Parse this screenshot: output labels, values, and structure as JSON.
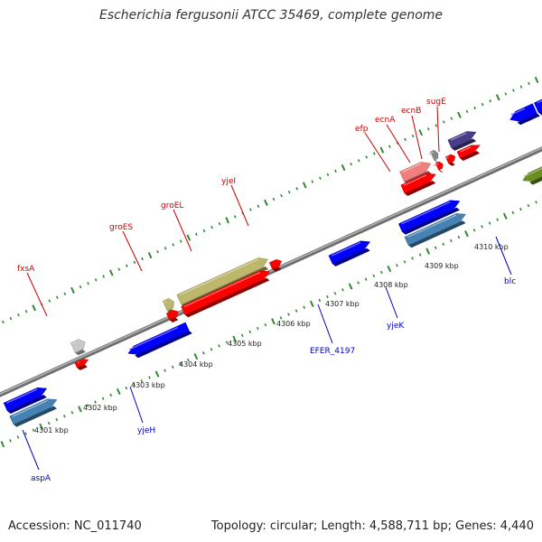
{
  "title": "Escherichia fergusonii ATCC 35469, complete genome",
  "footer": {
    "accession": "Accession: NC_011740",
    "summary": "Topology: circular; Length: 4,588,711 bp; Genes: 4,440"
  },
  "colors": {
    "backbone": "#8a8a8a",
    "tick": "#2f8a2f",
    "label_top": "#cc0000",
    "label_bottom": "#0000bb"
  },
  "scale_labels": [
    "4301 kbp",
    "4302 kbp",
    "4303 kbp",
    "4304 kbp",
    "4305 kbp",
    "4306 kbp",
    "4307 kbp",
    "4308 kbp",
    "4309 kbp",
    "4310 kbp"
  ],
  "genes_top": [
    {
      "label": "fxsA",
      "color": "#c8c8c8"
    },
    {
      "label": "groES",
      "color": "#bdb76b"
    },
    {
      "label": "groEL",
      "color": "#bdb76b"
    },
    {
      "label": "yjeI",
      "color": "#ff0000"
    },
    {
      "label": "efp",
      "color": "#f08080"
    },
    {
      "label": "ecnA",
      "color": "#888888"
    },
    {
      "label": "ecnB",
      "color": "#ff0000"
    },
    {
      "label": "sugE",
      "color": "#483d8b"
    }
  ],
  "genes_bottom": [
    {
      "label": "aspA",
      "color": "#4682b4"
    },
    {
      "label": "yjeH",
      "color": "#0000ff"
    },
    {
      "label": "EFER_4197",
      "color": "#0000ff"
    },
    {
      "label": "yjeK",
      "color": "#4682b4"
    },
    {
      "label": "blc",
      "color": "#0000ff"
    }
  ]
}
